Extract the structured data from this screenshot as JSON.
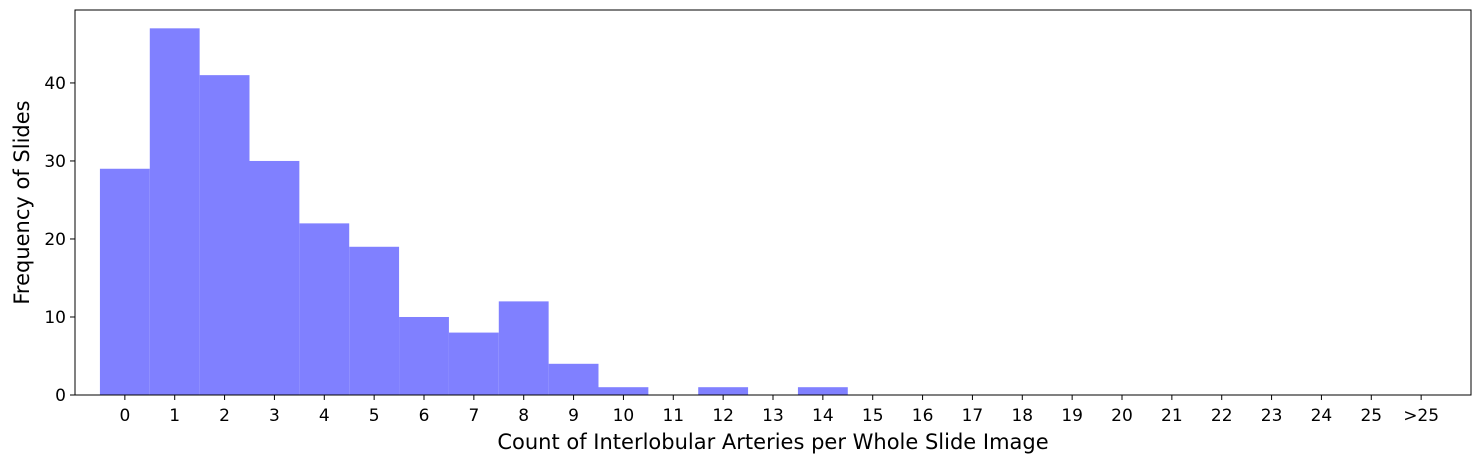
{
  "chart_data": {
    "type": "bar",
    "xlabel": "Count of Interlobular Arteries per Whole Slide Image",
    "ylabel": "Frequency of Slides",
    "categories": [
      "0",
      "1",
      "2",
      "3",
      "4",
      "5",
      "6",
      "7",
      "8",
      "9",
      "10",
      "11",
      "12",
      "13",
      "14",
      "15",
      "16",
      "17",
      "18",
      "19",
      "20",
      "21",
      "22",
      "23",
      "24",
      "25",
      ">25"
    ],
    "values": [
      29,
      47,
      41,
      30,
      22,
      19,
      10,
      8,
      12,
      4,
      1,
      0,
      1,
      0,
      1,
      0,
      0,
      0,
      0,
      0,
      0,
      0,
      0,
      0,
      0,
      0,
      0
    ],
    "yticks": [
      0,
      10,
      20,
      30,
      40
    ],
    "ylim": [
      0,
      49.35
    ],
    "xlim": [
      -1,
      27
    ],
    "bar_color": "#8080ff",
    "grid": false,
    "legend": "none"
  }
}
